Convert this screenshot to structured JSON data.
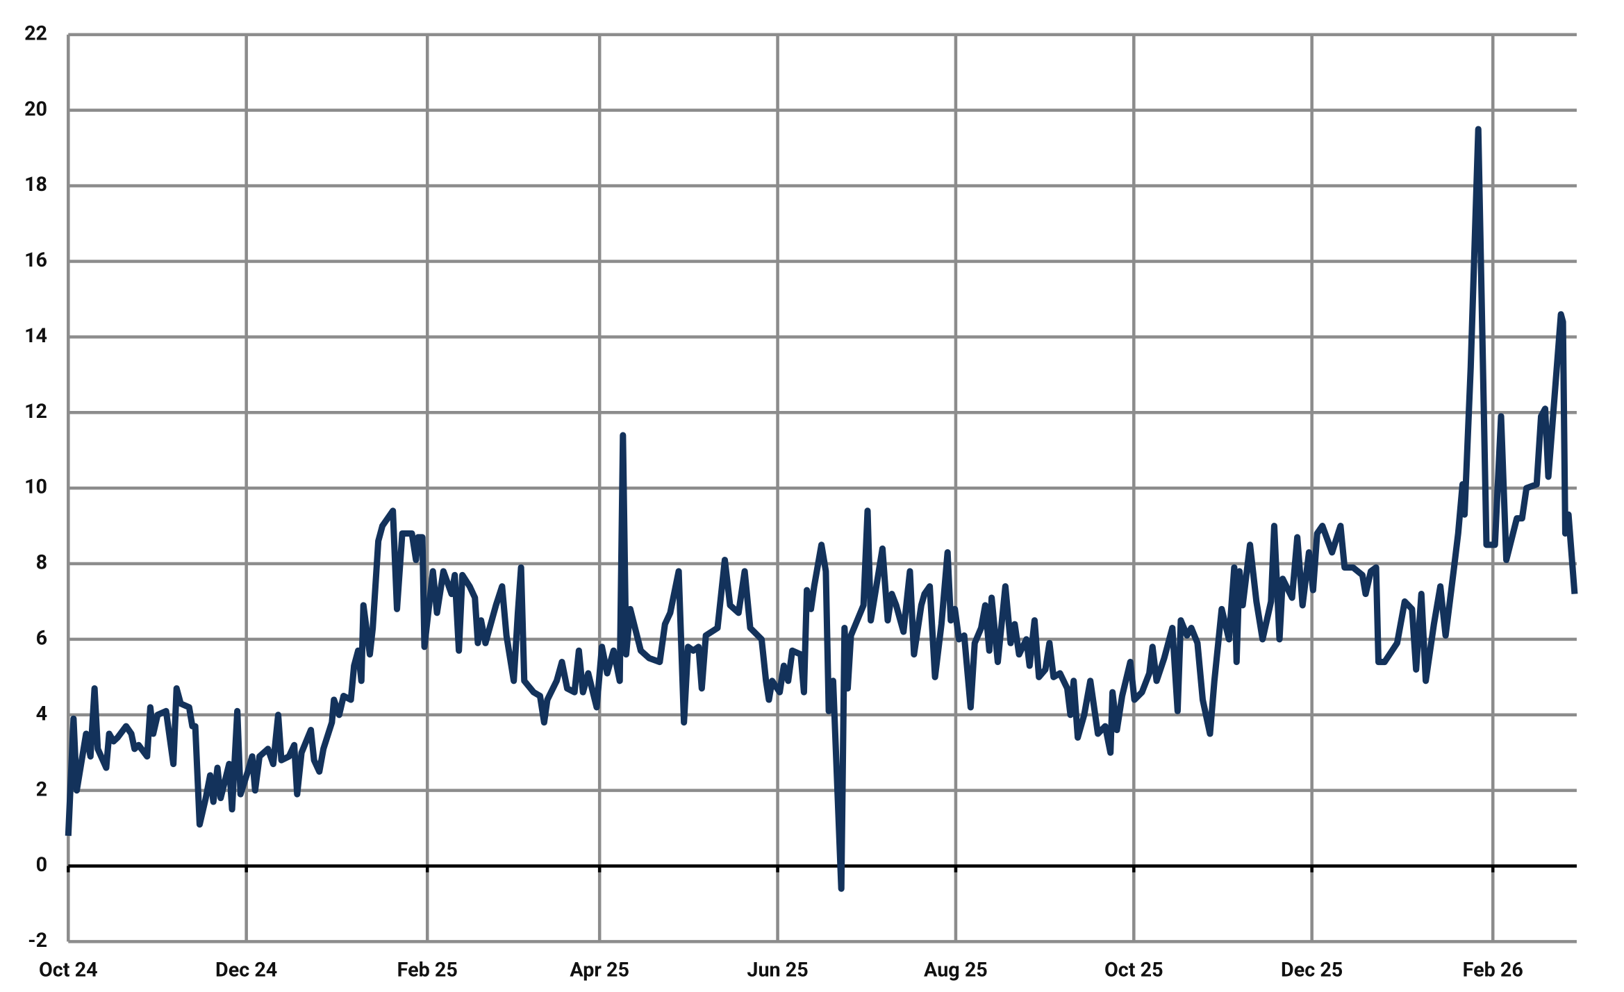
{
  "chart_data": {
    "type": "line",
    "color": "#13325b",
    "grid": true,
    "x": [
      0,
      1.8,
      2.9,
      6.1,
      7.6,
      9.0,
      10.1,
      13.0,
      14.0,
      15.5,
      16.9,
      19.8,
      21.6,
      22.7,
      24.1,
      27.0,
      28.1,
      29.1,
      30.6,
      33.5,
      36.0,
      37.1,
      38.5,
      41.4,
      42.5,
      43.5,
      45.0,
      47.1,
      48.6,
      49.7,
      51.1,
      52.2,
      55.1,
      56.1,
      57.9,
      59.0,
      61.5,
      63.0,
      64.0,
      65.5,
      68.4,
      70.2,
      71.9,
      73.0,
      75.6,
      77.4,
      78.4,
      79.9,
      83.1,
      84.2,
      86.0,
      87.4,
      90.3,
      91.0,
      92.8,
      94.3,
      96.8,
      97.9,
      99.3,
      100.4,
      101.1,
      103.3,
      104.3,
      106.2,
      107.6,
      111.2,
      112.6,
      114.4,
      117.7,
      119.1,
      119.8,
      121.3,
      122.0,
      124.9,
      126.3,
      128.5,
      131.3,
      132.4,
      133.8,
      135.0,
      137.5,
      139.3,
      140.3,
      141.4,
      142.9,
      146.5,
      148.6,
      150.1,
      152.6,
      154.0,
      155.1,
      156.2,
      159.4,
      161.6,
      163.0,
      164.1,
      167.3,
      169.1,
      170.9,
      173.4,
      174.9,
      176.3,
      178.1,
      181.0,
      182.8,
      184.6,
      186.8,
      188.9,
      190.0,
      191.1,
      192.5,
      196.1,
      199.0,
      202.6,
      204.4,
      206.2,
      209.1,
      210.9,
      212.3,
      214.1,
      215.9,
      217.0,
      218.4,
      222.4,
      224.9,
      226.7,
      229.6,
      231.7,
      233.6,
      237.5,
      239.0,
      240.0,
      241.1,
      243.7,
      245.1,
      246.6,
      248.0,
      250.9,
      252.0,
      253.0,
      254.4,
      255.5,
      258.0,
      259.5,
      260.5,
      262.0,
      264.8,
      265.9,
      267.0,
      268.1,
      272.4,
      273.8,
      274.9,
      276.8,
      278.9,
      280.7,
      282.1,
      283.6,
      286.1,
      288.3,
      289.7,
      292.2,
      293.3,
      295.1,
      296.9,
      299.1,
      301.2,
      302.3,
      303.7,
      305.1,
      306.9,
      309.1,
      310.5,
      312.7,
      314.1,
      315.5,
      316.3,
      318.4,
      321.0,
      322.8,
      324.2,
      325.7,
      328.2,
      329.3,
      331.0,
      332.5,
      334.7,
      336.1,
      337.5,
      339.7,
      342.2,
      343.3,
      344.4,
      345.8,
      348.0,
      350.1,
      352.7,
      355.2,
      357.0,
      357.7,
      359.2,
      361.0,
      363.8,
      365.2,
      367.8,
      370.3,
      371.4,
      372.8,
      375.4,
      378.2,
      380.0,
      381.1,
      383.2,
      384.7,
      386.8,
      388.6,
      391.1,
      392.6,
      395.1,
      397.6,
      399.4,
      400.2,
      401.2,
      402.3,
      404.8,
      407.0,
      409.1,
      412.0,
      413.1,
      414.9,
      416.0,
      419.2,
      421.0,
      422.8,
      425.0,
      426.4,
      427.8,
      429.6,
      432.9,
      435.8,
      437.2,
      440.1,
      443.3,
      444.4,
      446.2,
      448.0,
      448.8,
      450.9,
      455.2,
      457.8,
      460.3,
      461.7,
      463.5,
      465.0,
      467.8,
      470.0,
      471.8,
      474.7,
      476.1,
      477.6,
      478.3,
      480.4,
      483.0,
      485.8,
      488.7,
      490.8,
      492.6,
      496.2,
      498.0,
      499.5,
      503.0,
      504.5,
      505.9,
      507.0,
      511.3,
      512.0,
      512.8,
      513.9,
      516
    ],
    "values": [
      0.8,
      3.9,
      2.0,
      3.5,
      2.9,
      4.7,
      3.1,
      2.6,
      3.5,
      3.3,
      3.4,
      3.7,
      3.5,
      3.1,
      3.2,
      2.9,
      4.2,
      3.5,
      4.0,
      4.1,
      2.7,
      4.7,
      4.3,
      4.2,
      3.7,
      3.7,
      1.1,
      1.8,
      2.4,
      1.7,
      2.6,
      1.8,
      2.7,
      1.5,
      4.1,
      1.9,
      2.5,
      2.9,
      2.0,
      2.9,
      3.1,
      2.7,
      4.0,
      2.8,
      2.9,
      3.2,
      1.9,
      3.0,
      3.6,
      2.8,
      2.5,
      3.1,
      3.8,
      4.4,
      4.0,
      4.5,
      4.4,
      5.3,
      5.7,
      4.9,
      6.9,
      5.6,
      6.3,
      8.6,
      9.0,
      9.4,
      6.8,
      8.8,
      8.8,
      8.1,
      8.7,
      8.7,
      5.8,
      7.8,
      6.7,
      7.8,
      7.2,
      7.7,
      5.7,
      7.7,
      7.4,
      7.1,
      5.9,
      6.5,
      5.9,
      6.9,
      7.4,
      6.1,
      4.9,
      6.7,
      7.9,
      4.9,
      4.6,
      4.5,
      3.8,
      4.4,
      4.9,
      5.4,
      4.7,
      4.6,
      5.7,
      4.6,
      5.1,
      4.2,
      5.8,
      5.1,
      5.7,
      4.9,
      11.4,
      5.6,
      6.8,
      5.7,
      5.5,
      5.4,
      6.4,
      6.7,
      7.8,
      3.8,
      5.8,
      5.7,
      5.8,
      4.7,
      6.1,
      6.3,
      8.1,
      6.9,
      6.7,
      7.8,
      6.3,
      6.0,
      4.9,
      4.4,
      4.9,
      4.6,
      5.3,
      4.9,
      5.7,
      5.6,
      4.6,
      7.3,
      6.8,
      7.4,
      8.5,
      7.8,
      4.1,
      4.9,
      -0.6,
      6.3,
      4.7,
      6.1,
      6.9,
      9.4,
      6.5,
      7.4,
      8.4,
      6.5,
      7.2,
      6.9,
      6.2,
      7.8,
      5.6,
      6.9,
      7.2,
      7.4,
      5.0,
      6.4,
      8.3,
      6.5,
      6.8,
      6.0,
      6.1,
      4.2,
      5.9,
      6.3,
      6.9,
      5.7,
      7.1,
      5.4,
      7.4,
      5.9,
      6.4,
      5.6,
      6.0,
      5.3,
      6.5,
      5.0,
      5.2,
      5.9,
      5.0,
      5.1,
      4.7,
      4.0,
      4.9,
      3.4,
      4.0,
      4.9,
      3.5,
      3.7,
      3.0,
      4.6,
      3.6,
      4.5,
      5.4,
      4.4,
      4.6,
      5.1,
      5.8,
      4.9,
      5.5,
      6.3,
      4.1,
      6.5,
      6.1,
      6.3,
      5.9,
      4.4,
      3.5,
      4.9,
      6.8,
      6.0,
      7.9,
      5.4,
      7.8,
      6.9,
      8.5,
      7.0,
      6.0,
      7.0,
      9.0,
      6.0,
      7.6,
      7.1,
      8.7,
      6.9,
      8.3,
      7.3,
      8.8,
      9.0,
      8.3,
      9.0,
      7.9,
      7.9,
      7.7,
      7.2,
      7.8,
      7.9,
      5.4,
      5.4,
      5.9,
      7.0,
      6.8,
      5.2,
      7.2,
      4.9,
      6.4,
      7.4,
      6.1,
      7.9,
      8.8,
      10.1,
      9.3,
      13.2,
      19.5,
      8.5,
      8.5,
      11.9,
      8.1,
      9.2,
      9.2,
      10.0,
      10.1,
      11.9,
      12.1,
      10.3,
      14.6,
      14.4,
      8.8,
      9.3,
      7.2
    ],
    "xlim": [
      0,
      516
    ],
    "xticks": [
      {
        "value": 0,
        "label": "Oct 24"
      },
      {
        "value": 61,
        "label": "Dec 24"
      },
      {
        "value": 123,
        "label": "Feb 25"
      },
      {
        "value": 182,
        "label": "Apr 25"
      },
      {
        "value": 243,
        "label": "Jun 25"
      },
      {
        "value": 304,
        "label": "Aug 25"
      },
      {
        "value": 365,
        "label": "Oct 25"
      },
      {
        "value": 426,
        "label": "Dec 25"
      },
      {
        "value": 488,
        "label": "Feb 26"
      }
    ],
    "ylim": [
      -2,
      22
    ],
    "yticks": [
      -2,
      0,
      2,
      4,
      6,
      8,
      10,
      12,
      14,
      16,
      18,
      20,
      22
    ]
  }
}
